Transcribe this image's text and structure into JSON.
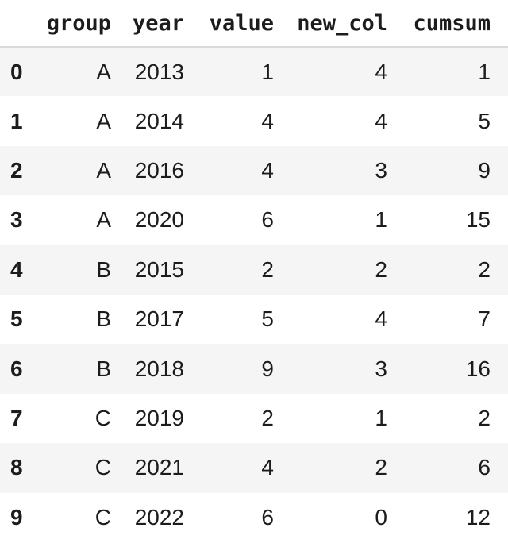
{
  "table": {
    "index_header": "",
    "columns": [
      "group",
      "year",
      "value",
      "new_col",
      "cumsum"
    ],
    "rows": [
      {
        "index": "0",
        "cells": [
          "A",
          "2013",
          "1",
          "4",
          "1"
        ]
      },
      {
        "index": "1",
        "cells": [
          "A",
          "2014",
          "4",
          "4",
          "5"
        ]
      },
      {
        "index": "2",
        "cells": [
          "A",
          "2016",
          "4",
          "3",
          "9"
        ]
      },
      {
        "index": "3",
        "cells": [
          "A",
          "2020",
          "6",
          "1",
          "15"
        ]
      },
      {
        "index": "4",
        "cells": [
          "B",
          "2015",
          "2",
          "2",
          "2"
        ]
      },
      {
        "index": "5",
        "cells": [
          "B",
          "2017",
          "5",
          "4",
          "7"
        ]
      },
      {
        "index": "6",
        "cells": [
          "B",
          "2018",
          "9",
          "3",
          "16"
        ]
      },
      {
        "index": "7",
        "cells": [
          "C",
          "2019",
          "2",
          "1",
          "2"
        ]
      },
      {
        "index": "8",
        "cells": [
          "C",
          "2021",
          "4",
          "2",
          "6"
        ]
      },
      {
        "index": "9",
        "cells": [
          "C",
          "2022",
          "6",
          "0",
          "12"
        ]
      }
    ]
  },
  "chart_data": {
    "type": "table",
    "columns": [
      "",
      "group",
      "year",
      "value",
      "new_col",
      "cumsum"
    ],
    "rows": [
      [
        0,
        "A",
        2013,
        1,
        4,
        1
      ],
      [
        1,
        "A",
        2014,
        4,
        4,
        5
      ],
      [
        2,
        "A",
        2016,
        4,
        3,
        9
      ],
      [
        3,
        "A",
        2020,
        6,
        1,
        15
      ],
      [
        4,
        "B",
        2015,
        2,
        2,
        2
      ],
      [
        5,
        "B",
        2017,
        5,
        4,
        7
      ],
      [
        6,
        "B",
        2018,
        9,
        3,
        16
      ],
      [
        7,
        "C",
        2019,
        2,
        1,
        2
      ],
      [
        8,
        "C",
        2021,
        4,
        2,
        6
      ],
      [
        9,
        "C",
        2022,
        6,
        0,
        12
      ]
    ],
    "title": "",
    "layout_hints": {
      "striped_rows": "odd rows shaded",
      "header_rule": "2px solid under header",
      "alignment": "index left-bold, all other cells right-aligned"
    }
  },
  "colors": {
    "text": "#1c1c1c",
    "stripe": "#f5f5f5",
    "header_border": "#d9d9d9",
    "background": "#ffffff"
  }
}
